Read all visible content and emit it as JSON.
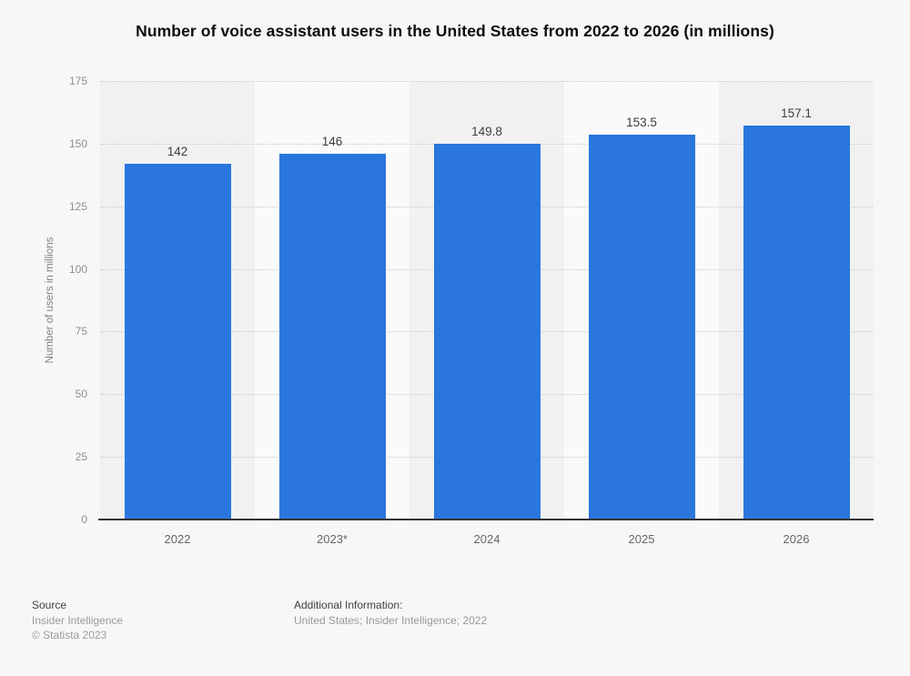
{
  "title": "Number of voice assistant users in the United States from 2022 to 2026 (in millions)",
  "chart_data": {
    "type": "bar",
    "categories": [
      "2022",
      "2023*",
      "2024",
      "2025",
      "2026"
    ],
    "values": [
      142,
      146,
      149.8,
      153.5,
      157.1
    ],
    "value_labels": [
      "142",
      "146",
      "149.8",
      "153.5",
      "157.1"
    ],
    "title": "Number of voice assistant users in the United States from 2022 to 2026 (in millions)",
    "xlabel": "",
    "ylabel": "Number of users in millions",
    "ylim": [
      0,
      175
    ],
    "yticks": [
      0,
      25,
      50,
      75,
      100,
      125,
      150,
      175
    ],
    "grid": "horizontal-dotted",
    "legend": "none",
    "bar_color": "#2a76dd",
    "band_colors": [
      "#f1f1f2",
      "#fafafa"
    ],
    "gridline_color": "#c8c8c8",
    "axis_line_color": "#333333"
  },
  "footer": {
    "source_label": "Source",
    "source_lines": [
      "Insider Intelligence",
      "© Statista 2023"
    ],
    "additional_label": "Additional Information:",
    "additional_lines": [
      "United States; Insider Intelligence; 2022"
    ]
  }
}
